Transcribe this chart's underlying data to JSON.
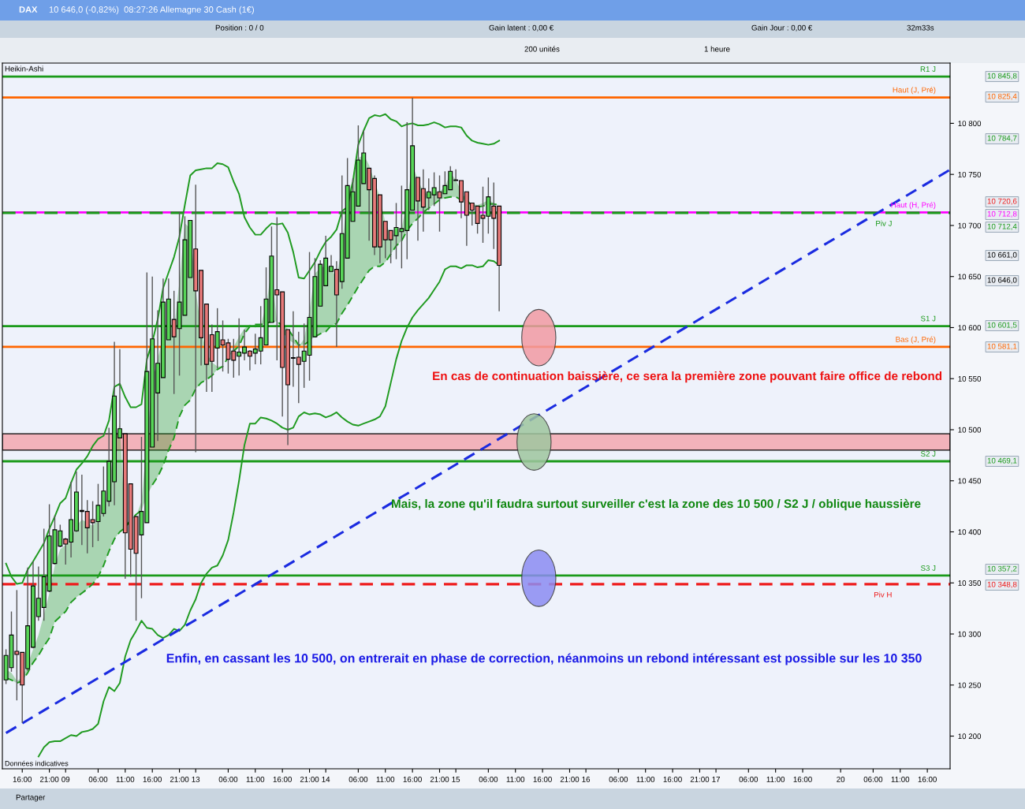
{
  "chart_data": {
    "type": "candlestick",
    "title": "DAX",
    "subtitle": "10 646,0 (-0,82%)  08:27:26 Allemagne 30 Cash (1€)",
    "categories": [
      null,
      null,
      null,
      "16:00",
      null,
      null,
      null,
      null,
      "21:00",
      null,
      null,
      "09",
      null,
      null,
      null,
      null,
      null,
      "06:00",
      null,
      null,
      null,
      null,
      "11:00",
      null,
      null,
      null,
      null,
      "16:00",
      null,
      null,
      null,
      null,
      "21:00",
      null,
      null,
      "13",
      null,
      null,
      null,
      null,
      null,
      "06:00",
      null,
      null,
      null,
      null,
      "11:00",
      null,
      null,
      null,
      null,
      "16:00",
      null,
      null,
      null,
      null,
      "21:00",
      null,
      null,
      "14",
      null,
      null,
      null,
      null,
      null,
      "06:00",
      null,
      null,
      null,
      null,
      "11:00",
      null,
      null,
      null,
      null,
      "16:00",
      null,
      null,
      null,
      null,
      "21:00",
      null,
      null,
      "15",
      null,
      null,
      null,
      null,
      null,
      "06:00",
      null,
      null,
      null,
      null,
      "11:00",
      null,
      null,
      null,
      null,
      "16:00",
      null,
      null,
      null,
      null,
      "21:00",
      null,
      null,
      "16",
      null,
      null,
      null,
      null,
      null,
      "06:00",
      null,
      null,
      null,
      null,
      "11:00",
      null,
      null,
      null,
      null,
      "16:00",
      null,
      null,
      null,
      null,
      "21:00",
      null,
      null,
      "17",
      null,
      null,
      null,
      null,
      null,
      "06:00",
      null,
      null,
      null,
      null,
      "11:00",
      null,
      null,
      null,
      null,
      "16:00",
      null,
      null,
      null,
      null,
      null,
      null,
      "20",
      null,
      null,
      null,
      null,
      null,
      "06:00",
      null,
      null,
      null,
      null,
      "11:00",
      null,
      null,
      null,
      null,
      "16:00",
      null,
      null,
      null,
      null
    ],
    "series": [
      {
        "ohlc": [
          [
            10255,
            10285,
            10251,
            10279
          ],
          [
            10267,
            10322,
            10263,
            10299
          ],
          [
            10283,
            10343,
            10235,
            10280
          ],
          [
            10282,
            10282,
            10213,
            10250
          ],
          [
            10266,
            10365,
            10264,
            10308
          ],
          [
            10287,
            10371,
            10286,
            10347
          ],
          [
            10317,
            10366,
            10313,
            10335
          ],
          [
            10326,
            10403,
            10313,
            10356
          ],
          [
            10342,
            10427,
            10341,
            10396
          ],
          [
            10369,
            10416,
            10368,
            10402
          ],
          [
            10386,
            10407,
            10385,
            10401
          ],
          [
            10393,
            10394,
            10368,
            10388
          ],
          [
            10390,
            10449,
            10375,
            10412
          ],
          [
            10401,
            10459,
            10400,
            10439
          ],
          [
            10420,
            10456,
            10387,
            10421
          ],
          [
            10420,
            10431,
            10379,
            10404
          ],
          [
            10412,
            10430,
            10385,
            10409
          ],
          [
            10410,
            10447,
            10391,
            10426
          ],
          [
            10418,
            10464,
            10415,
            10440
          ],
          [
            10430,
            10502,
            10425,
            10469
          ],
          [
            10449,
            10586,
            10426,
            10533
          ],
          [
            10492,
            10579,
            10492,
            10501
          ],
          [
            10496,
            10496,
            10354,
            10399
          ],
          [
            10447,
            10447,
            10356,
            10383
          ],
          [
            10415,
            10415,
            10313,
            10379
          ],
          [
            10397,
            10493,
            10335,
            10420
          ],
          [
            10409,
            10654,
            10409,
            10557
          ],
          [
            10483,
            10650,
            10483,
            10589
          ],
          [
            10536,
            10617,
            10489,
            10565
          ],
          [
            10551,
            10648,
            10551,
            10625
          ],
          [
            10588,
            10648,
            10588,
            10628
          ],
          [
            10608,
            10636,
            10535,
            10591
          ],
          [
            10599,
            10713,
            10553,
            10625
          ],
          [
            10612,
            10709,
            10612,
            10686
          ],
          [
            10649,
            10705,
            10649,
            10705
          ],
          [
            10677,
            10740,
            10478,
            10636
          ],
          [
            10656,
            10656,
            10563,
            10590
          ],
          [
            10623,
            10623,
            10537,
            10564
          ],
          [
            10593,
            10603,
            10537,
            10567
          ],
          [
            10580,
            10619,
            10560,
            10596
          ],
          [
            10588,
            10607,
            10557,
            10583
          ],
          [
            10585,
            10589,
            10555,
            10569
          ],
          [
            10577,
            10589,
            10551,
            10568
          ],
          [
            10572,
            10609,
            10553,
            10576
          ],
          [
            10575,
            10598,
            10568,
            10581
          ],
          [
            10577,
            10578,
            10558,
            10572
          ],
          [
            10575,
            10594,
            10564,
            10579
          ],
          [
            10577,
            10621,
            10564,
            10590
          ],
          [
            10583,
            10659,
            10583,
            10628
          ],
          [
            10605,
            10699,
            10605,
            10670
          ],
          [
            10637,
            10708,
            10568,
            10632
          ],
          [
            10635,
            10635,
            10513,
            10561
          ],
          [
            10598,
            10598,
            10485,
            10544
          ],
          [
            10570,
            10616,
            10542,
            10570
          ],
          [
            10571,
            10596,
            10526,
            10564
          ],
          [
            10567,
            10604,
            10541,
            10577
          ],
          [
            10573,
            10674,
            10548,
            10610
          ],
          [
            10591,
            10668,
            10591,
            10650
          ],
          [
            10621,
            10666,
            10621,
            10662
          ],
          [
            10641,
            10690,
            10641,
            10668
          ],
          [
            10655,
            10671,
            10655,
            10660
          ],
          [
            10657,
            10665,
            10581,
            10632
          ],
          [
            10645,
            10749,
            10638,
            10692
          ],
          [
            10668,
            10766,
            10668,
            10739
          ],
          [
            10704,
            10746,
            10704,
            10733
          ],
          [
            10719,
            10798,
            10719,
            10764
          ],
          [
            10741,
            10793,
            10741,
            10771
          ],
          [
            10756,
            10756,
            10685,
            10735
          ],
          [
            10746,
            10749,
            10671,
            10679
          ],
          [
            10730,
            10730,
            10663,
            10679
          ],
          [
            10704,
            10704,
            10668,
            10686
          ],
          [
            10695,
            10695,
            10663,
            10686
          ],
          [
            10690,
            10722,
            10667,
            10698
          ],
          [
            10694,
            10739,
            10658,
            10697
          ],
          [
            10695,
            10801,
            10667,
            10735
          ],
          [
            10715,
            10825,
            10715,
            10778
          ],
          [
            10747,
            10747,
            10685,
            10724
          ],
          [
            10736,
            10755,
            10694,
            10718
          ],
          [
            10727,
            10746,
            10715,
            10733
          ],
          [
            10730,
            10752,
            10719,
            10737
          ],
          [
            10733,
            10749,
            10694,
            10727
          ],
          [
            10731,
            10753,
            10731,
            10739
          ],
          [
            10735,
            10758,
            10735,
            10753
          ],
          [
            10744,
            10755,
            10744,
            10744
          ],
          [
            10744,
            10744,
            10707,
            10723
          ],
          [
            10733,
            10733,
            10680,
            10710
          ],
          [
            10722,
            10722,
            10700,
            10715
          ],
          [
            10719,
            10719,
            10692,
            10702
          ],
          [
            10710,
            10738,
            10683,
            10707
          ],
          [
            10709,
            10747,
            10692,
            10728
          ],
          [
            10719,
            10742,
            10677,
            10707
          ],
          [
            10719,
            10719,
            10616,
            10661
          ],
          null,
          null,
          null,
          null,
          null,
          null,
          null,
          null,
          null,
          null,
          null,
          null,
          null,
          null,
          null,
          null,
          null,
          null,
          null,
          null,
          null,
          null,
          null,
          null,
          null,
          null,
          null,
          null,
          null,
          null,
          null,
          null,
          null,
          null,
          null,
          null,
          null,
          null,
          null,
          null,
          null,
          null,
          null,
          null,
          null,
          null,
          null,
          null,
          null,
          null,
          null,
          null,
          null,
          null,
          null,
          null,
          null,
          null,
          null,
          null,
          null,
          null,
          null,
          null,
          null,
          null,
          null,
          null,
          null,
          null,
          null,
          null,
          null,
          null,
          null,
          null,
          null,
          null,
          null,
          null,
          null,
          null,
          null
        ],
        "colors": [
          "#58d658",
          "#58d658",
          "#e77a7a",
          "#e77a7a",
          "#58d658",
          "#58d658",
          "#58d658",
          "#58d658",
          "#58d658",
          "#58d658",
          "#58d658",
          "#e77a7a",
          "#58d658",
          "#58d658",
          "#000000",
          "#e77a7a",
          "#e77a7a",
          "#58d658",
          "#58d658",
          "#58d658",
          "#58d658",
          "#58d658",
          "#e77a7a",
          "#e77a7a",
          "#e77a7a",
          "#58d658",
          "#58d658",
          "#58d658",
          "#58d658",
          "#58d658",
          "#58d658",
          "#e77a7a",
          "#58d658",
          "#58d658",
          "#58d658",
          "#e77a7a",
          "#e77a7a",
          "#e77a7a",
          "#e77a7a",
          "#58d658",
          "#e77a7a",
          "#e77a7a",
          "#e77a7a",
          "#58d658",
          "#58d658",
          "#e77a7a",
          "#58d658",
          "#58d658",
          "#58d658",
          "#58d658",
          "#e77a7a",
          "#e77a7a",
          "#e77a7a",
          "#000000",
          "#e77a7a",
          "#58d658",
          "#58d658",
          "#58d658",
          "#58d658",
          "#58d658",
          "#58d658",
          "#e77a7a",
          "#58d658",
          "#58d658",
          "#58d658",
          "#58d658",
          "#58d658",
          "#e77a7a",
          "#e77a7a",
          "#e77a7a",
          "#e77a7a",
          "#e77a7a",
          "#58d658",
          "#58d658",
          "#58d658",
          "#58d658",
          "#e77a7a",
          "#e77a7a",
          "#58d658",
          "#58d658",
          "#e77a7a",
          "#58d658",
          "#58d658",
          "#000000",
          "#e77a7a",
          "#e77a7a",
          "#e77a7a",
          "#e77a7a",
          "#e77a7a",
          "#58d658",
          "#e77a7a",
          "#e77a7a",
          null,
          null,
          null,
          null,
          null,
          null,
          null,
          null,
          null,
          null,
          null,
          null,
          null,
          null,
          null,
          null,
          null,
          null,
          null,
          null,
          null,
          null,
          null,
          null,
          null,
          null,
          null,
          null,
          null,
          null,
          null,
          null,
          null,
          null,
          null,
          null,
          null,
          null,
          null,
          null,
          null,
          null,
          null,
          null,
          null,
          null,
          null,
          null,
          null,
          null,
          null,
          null,
          null,
          null,
          null,
          null,
          null,
          null,
          null,
          null,
          null,
          null,
          null,
          null,
          null,
          null,
          null,
          null,
          null,
          null,
          null,
          null,
          null,
          null,
          null,
          null,
          null,
          null,
          null,
          null,
          null,
          null,
          null
        ]
      },
      {
        "type": "line",
        "color": "#1f9a1f",
        "values": [
          10369,
          10356,
          10349,
          10350,
          10363,
          10371,
          10380,
          10389,
          10403,
          10415,
          10428,
          10433,
          10448,
          10461,
          10467,
          10474,
          10484,
          10491,
          10494,
          10509,
          10542,
          10545,
          10532,
          10522,
          10522,
          10525,
          10569,
          10586,
          10608,
          10639,
          10654,
          10669,
          10689,
          10720,
          10749,
          10754,
          10755,
          10756,
          10756,
          10761,
          10760,
          10757,
          10743,
          10731,
          10708,
          10698,
          10691,
          10691,
          10697,
          10702,
          10701,
          10702,
          10693,
          10674,
          10649,
          10648,
          10656,
          10664,
          10675,
          10684,
          10689,
          10696,
          10714,
          10718,
          10743,
          10779,
          10793,
          10805,
          10808,
          10807,
          10809,
          10804,
          10802,
          10797,
          10799,
          10800,
          10798,
          10798,
          10799,
          10801,
          10799,
          10796,
          10797,
          10797,
          10796,
          10788,
          10783,
          10781,
          10780,
          10779,
          10780,
          10783,
          null,
          null,
          null,
          null,
          null,
          null,
          null,
          null,
          null,
          null,
          null,
          null,
          null,
          null,
          null,
          null,
          null,
          null,
          null,
          null,
          null,
          null,
          null,
          null,
          null,
          null,
          null,
          null,
          null,
          null,
          null,
          null,
          null,
          null,
          null,
          null,
          null,
          null,
          null,
          null,
          null,
          null,
          null,
          null,
          null,
          null,
          null,
          null,
          null,
          null,
          null,
          null,
          null,
          null,
          null,
          null,
          null,
          null,
          null,
          null,
          null,
          null,
          null,
          null,
          null,
          null,
          null,
          null,
          null,
          null,
          null,
          null,
          null,
          null,
          null,
          null,
          null,
          null,
          null,
          null,
          null,
          null,
          null
        ]
      },
      {
        "type": "line",
        "color": "#1f9a1f",
        "values": [
          null,
          null,
          null,
          null,
          null,
          null,
          10180,
          10189,
          10194,
          10195,
          10195,
          10198,
          10201,
          10200,
          10204,
          10205,
          10207,
          10212,
          10234,
          10248,
          10244,
          10252,
          10278,
          10294,
          10303,
          10313,
          10306,
          10305,
          10299,
          10296,
          10299,
          10305,
          10303,
          10309,
          10323,
          10334,
          10350,
          10359,
          10365,
          10367,
          10377,
          10392,
          10419,
          10450,
          10485,
          10506,
          10506,
          10512,
          10511,
          10509,
          10506,
          10502,
          10500,
          10502,
          10513,
          10517,
          10515,
          10516,
          10515,
          10512,
          10514,
          10517,
          10512,
          10508,
          10505,
          10504,
          10506,
          10508,
          10510,
          10513,
          10523,
          10546,
          10569,
          10587,
          10600,
          10610,
          10617,
          10623,
          10629,
          10637,
          10645,
          10657,
          10660,
          10660,
          10658,
          10661,
          10661,
          10659,
          10660,
          10666,
          10665,
          10661,
          null,
          null,
          null,
          null,
          null,
          null,
          null,
          null,
          null,
          null,
          null,
          null,
          null,
          null,
          null,
          null,
          null,
          null,
          null,
          null,
          null,
          null,
          null,
          null,
          null,
          null,
          null,
          null,
          null,
          null,
          null,
          null,
          null,
          null,
          null,
          null,
          null,
          null,
          null,
          null,
          null,
          null,
          null,
          null,
          null,
          null,
          null,
          null,
          null,
          null,
          null,
          null,
          null,
          null,
          null,
          null,
          null,
          null,
          null,
          null,
          null,
          null,
          null,
          null,
          null,
          null,
          null,
          null,
          null,
          null,
          null,
          null,
          null,
          null,
          null,
          null,
          null,
          null,
          null,
          null,
          null,
          null,
          null
        ]
      },
      {
        "type": "line",
        "color": "#1f9a1f",
        "line_style": "dashed",
        "values": [
          10257,
          10255,
          10252,
          10254,
          10262,
          10272,
          10279,
          10288,
          10296,
          10312,
          10317,
          10322,
          10331,
          10336,
          10340,
          10344,
          10349,
          10356,
          10367,
          10381,
          10393,
          10400,
          10404,
          10412,
          10417,
          10421,
          null,
          10446,
          10454,
          10465,
          10480,
          10492,
          10513,
          10524,
          10529,
          10540,
          10546,
          10549,
          10553,
          10559,
          10562,
          10571,
          10577,
          10582,
          10594,
          10601,
          10603,
          10603,
          10604,
          10606,
          10606,
          10602,
          10599,
          10591,
          10583,
          10583,
          10587,
          10591,
          10594,
          10596,
          10602,
          10604,
          10614,
          10622,
          10631,
          10640,
          10648,
          10656,
          10660,
          10660,
          10664,
          10672,
          10680,
          10685,
          10695,
          10702,
          10707,
          10713,
          10717,
          10721,
          10725,
          10727,
          10728,
          10728,
          10725,
          10725,
          10719,
          10718,
          10719,
          10721,
          10721,
          10720,
          null,
          null,
          null,
          null,
          null,
          null,
          null,
          null,
          null,
          null,
          null,
          null,
          null,
          null,
          null,
          null,
          null,
          null,
          null,
          null,
          null,
          null,
          null,
          null,
          null,
          null,
          null,
          null,
          null,
          null,
          null,
          null,
          null,
          null,
          null,
          null,
          null,
          null,
          null,
          null,
          null,
          null,
          null,
          null,
          null,
          null,
          null,
          null,
          null,
          null,
          null,
          null,
          null,
          null,
          null,
          null,
          null,
          null,
          null,
          null,
          null,
          null,
          null,
          null,
          null,
          null,
          null,
          null,
          null,
          null,
          null,
          null,
          null,
          null,
          null,
          null,
          null,
          null,
          null,
          null,
          null,
          null,
          null
        ],
        "lower": [
          10257,
          10255,
          10252,
          10254,
          10262,
          10272,
          10279,
          10288,
          10296,
          10312,
          10317,
          10322,
          10331,
          10336,
          10340,
          10344,
          10349,
          10356,
          10367,
          10381,
          10393,
          10400,
          10404,
          10412,
          10417,
          10421,
          10435,
          10446,
          10454,
          10465,
          10480,
          10492,
          10513,
          10524,
          10529,
          10540,
          10546,
          10549,
          10553,
          10559,
          10562,
          10571,
          10577,
          10582,
          10594,
          10601,
          10603,
          10603,
          10604,
          10606,
          10606,
          10602,
          10599,
          10591,
          10583,
          10583,
          10587,
          10591,
          10594,
          10596,
          10602,
          10604,
          10614,
          10622,
          10631,
          10640,
          10648,
          10656,
          10660,
          10660,
          10664,
          10672,
          10680,
          10685,
          10695,
          10702,
          10707,
          10713,
          10717,
          10721,
          10725,
          10727,
          10728,
          10728,
          10725,
          10725,
          10719,
          10718,
          10719,
          10721,
          10721,
          10720,
          null,
          null,
          null,
          null,
          null,
          null,
          null,
          null,
          null,
          null,
          null,
          null,
          null,
          null,
          null,
          null,
          null,
          null,
          null,
          null,
          null,
          null,
          null,
          null,
          null,
          null,
          null,
          null,
          null,
          null,
          null,
          null,
          null,
          null,
          null,
          null,
          null,
          null,
          null,
          null,
          null,
          null,
          null,
          null,
          null,
          null,
          null,
          null,
          null,
          null,
          null,
          null,
          null,
          null,
          null,
          null,
          null,
          null,
          null,
          null,
          null,
          null,
          null,
          null,
          null,
          null,
          null,
          null,
          null,
          null,
          null,
          null,
          null,
          null,
          null,
          null,
          null,
          null,
          null,
          null,
          null,
          null,
          null
        ],
        "upper": [
          10265,
          10262,
          10254,
          10257,
          10270,
          10285,
          10299,
          10319,
          10340,
          10367,
          10383,
          10387,
          10393,
          10406,
          10412,
          10409,
          10406,
          10412,
          10421,
          10441,
          10488,
          10506,
          10406,
          10412,
          10415,
          10430,
          10488,
          10548,
          10569,
          10592,
          10606,
          10598,
          10645,
          10702,
          10697,
          10637,
          10599,
          10575,
          10566,
          10562,
          10562,
          10571,
          10581,
          10591,
          10599,
          10603,
          10600,
          10602,
          10622,
          10656,
          10606,
          10596,
          10589,
          10585,
          10581,
          10589,
          10617,
          10653,
          10658,
          10661,
          10658,
          10648,
          10681,
          10728,
          10745,
          10766,
          10769,
          10759,
          10743,
          10728,
          10702,
          10691,
          10691,
          10697,
          10725,
          10759,
          10745,
          10733,
          10730,
          10733,
          10733,
          10738,
          10751,
          10745,
          10733,
          10725,
          10721,
          10720,
          10722,
          10725,
          10722,
          10720,
          null,
          null,
          null,
          null,
          null,
          null,
          null,
          null,
          null,
          null,
          null,
          null,
          null,
          null,
          null,
          null,
          null,
          null,
          null,
          null,
          null,
          null,
          null,
          null,
          null,
          null,
          null,
          null,
          null,
          null,
          null,
          null,
          null,
          null,
          null,
          null,
          null,
          null,
          null,
          null,
          null,
          null,
          null,
          null,
          null,
          null,
          null,
          null,
          null,
          null,
          null,
          null,
          null,
          null,
          null,
          null,
          null,
          null,
          null,
          null,
          null,
          null,
          null,
          null,
          null,
          null,
          null,
          null,
          null,
          null,
          null,
          null,
          null,
          null,
          null,
          null,
          null,
          null,
          null,
          null,
          null,
          null,
          null
        ]
      },
      {
        "type": "line",
        "color": "#1a2be0",
        "line_style": "dashed",
        "values": [
          10203,
          null,
          null,
          null,
          null,
          null,
          null,
          null,
          null,
          null,
          null,
          null,
          null,
          null,
          null,
          null,
          null,
          null,
          null,
          null,
          null,
          null,
          null,
          null,
          null,
          null,
          null,
          null,
          null,
          null,
          null,
          null,
          null,
          null,
          null,
          null,
          null,
          null,
          null,
          null,
          null,
          null,
          null,
          null,
          null,
          null,
          null,
          null,
          null,
          null,
          null,
          null,
          null,
          null,
          null,
          null,
          null,
          null,
          null,
          null,
          null,
          null,
          null,
          null,
          null,
          null,
          null,
          null,
          null,
          null,
          null,
          null,
          null,
          null,
          null,
          null,
          null,
          null,
          null,
          null,
          null,
          null,
          null,
          null,
          null,
          null,
          null,
          null,
          null,
          null,
          null,
          null,
          null,
          null,
          null,
          null,
          null,
          null,
          null,
          null,
          null,
          null,
          null,
          null,
          null,
          null,
          null,
          null,
          null,
          null,
          null,
          null,
          null,
          null,
          null,
          null,
          null,
          null,
          null,
          null,
          null,
          null,
          null,
          null,
          null,
          null,
          null,
          null,
          null,
          null,
          null,
          null,
          null,
          null,
          null,
          null,
          null,
          null,
          null,
          null,
          null,
          null,
          null,
          null,
          null,
          null,
          null,
          null,
          null,
          null,
          null,
          null,
          null,
          null,
          null,
          null,
          null,
          null,
          null,
          null,
          null,
          null,
          null,
          null,
          null,
          null,
          null,
          null,
          null,
          null,
          null,
          null,
          null,
          null,
          10754
        ]
      }
    ],
    "ylim": [
      10168,
      10859
    ],
    "yticks": [
      {
        "value": 10200,
        "label": "10 200"
      },
      {
        "value": 10250,
        "label": "10 250"
      },
      {
        "value": 10300,
        "label": "10 300"
      },
      {
        "value": 10350,
        "label": "10 350"
      },
      {
        "value": 10400,
        "label": "10 400"
      },
      {
        "value": 10450,
        "label": "10 450"
      },
      {
        "value": 10500,
        "label": "10 500"
      },
      {
        "value": 10550,
        "label": "10 550"
      },
      {
        "value": 10600,
        "label": "10 600"
      },
      {
        "value": 10650,
        "label": "10 650"
      },
      {
        "value": 10700,
        "label": "10 700"
      },
      {
        "value": 10750,
        "label": "10 750"
      },
      {
        "value": 10800,
        "label": "10 800"
      }
    ],
    "grid": false,
    "ref_lines": [
      {
        "axis": "y",
        "value": 10845.8,
        "label": "R1 J",
        "color": "#1a9a1a"
      },
      {
        "axis": "y",
        "value": 10825.4,
        "label": "Haut (J, Pré)",
        "color": "#ff6600"
      },
      {
        "axis": "y",
        "value": 10712.8,
        "label": "Haut (H, Pré)",
        "color": "#ff00ff"
      },
      {
        "axis": "y",
        "value": 10712.4,
        "label": "Piv J",
        "color": "#1a9a1a",
        "line_style": "dashed"
      },
      {
        "axis": "y",
        "value": 10601.5,
        "label": "S1 J",
        "color": "#1a9a1a"
      },
      {
        "axis": "y",
        "value": 10581.1,
        "label": "Bas (J, Pré)",
        "color": "#ff6600"
      },
      {
        "axis": "y",
        "value": 10469.1,
        "label": "S2 J",
        "color": "#1a9a1a"
      },
      {
        "axis": "y",
        "value": 10357.2,
        "label": "S3 J",
        "color": "#1a9a1a"
      },
      {
        "axis": "y",
        "value": 10348.8,
        "label": "Piv H",
        "color": "#ee1c1c",
        "line_style": "dashed"
      }
    ],
    "bands": [
      {
        "axis": "y",
        "from": 10480,
        "to": 10496,
        "color": "#f2b3bb"
      }
    ],
    "annotations": [
      "Position : 0 / 0",
      "Gain latent : 0,00 €",
      "Gain Jour : 0,00 €",
      "200 unités",
      "1 heure",
      "Heikin-Ashi",
      "En cas de continuation baissière, ce sera la première zone pouvant faire office de rebond",
      "Mais, la zone qu'il faudra surtout surveiller c'est la zone des 10 500 / S2 J / oblique haussière",
      "Enfin, en cassant les 10 500, on entrerait en phase de correction, néanmoins un rebond intéressant est possible sur les 10 350",
      "Données indicatives",
      "Partager",
      "32m33s",
      "10 845,8",
      "10 825,4",
      "10 784,7",
      "10 720,6",
      "10 712,8",
      "10 712,4",
      "10 661,0",
      "10 646,0",
      "10 601,5",
      "10 581,1",
      "10 469,1",
      "10 357,2",
      "10 348,8"
    ]
  }
}
